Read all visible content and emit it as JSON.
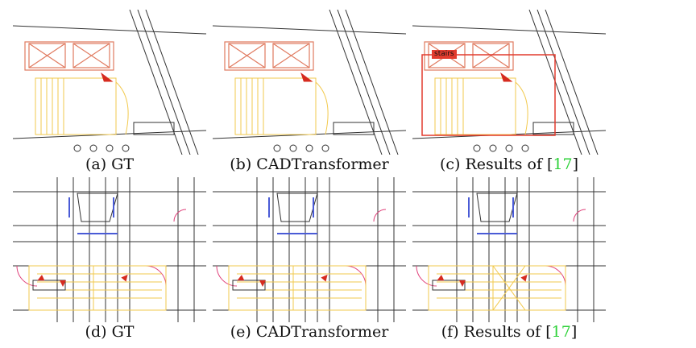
{
  "figure": {
    "panels": [
      {
        "id": "a",
        "caption_prefix": "(a) ",
        "caption_main": "GT",
        "caption_ref": "",
        "caption_suffix": ""
      },
      {
        "id": "b",
        "caption_prefix": "(b) ",
        "caption_main": "CADTransformer",
        "caption_ref": "",
        "caption_suffix": ""
      },
      {
        "id": "c",
        "caption_prefix": "(c) ",
        "caption_main": "Results of [",
        "caption_ref": "17",
        "caption_suffix": "]",
        "detection_label": "stairs"
      },
      {
        "id": "d",
        "caption_prefix": "(d) ",
        "caption_main": "GT",
        "caption_ref": "",
        "caption_suffix": ""
      },
      {
        "id": "e",
        "caption_prefix": "(e) ",
        "caption_main": "CADTransformer",
        "caption_ref": "",
        "caption_suffix": ""
      },
      {
        "id": "f",
        "caption_prefix": "(f) ",
        "caption_main": "Results of [",
        "caption_ref": "17",
        "caption_suffix": "]"
      }
    ],
    "colors": {
      "stairs": "#f2c94c",
      "wall_lines": "#333333",
      "arrow": "#d62b1f",
      "detection_box": "#e23b2e",
      "door_arc": "#e0407a",
      "window": "#4a5bd6",
      "citation": "#2fd23a"
    }
  }
}
